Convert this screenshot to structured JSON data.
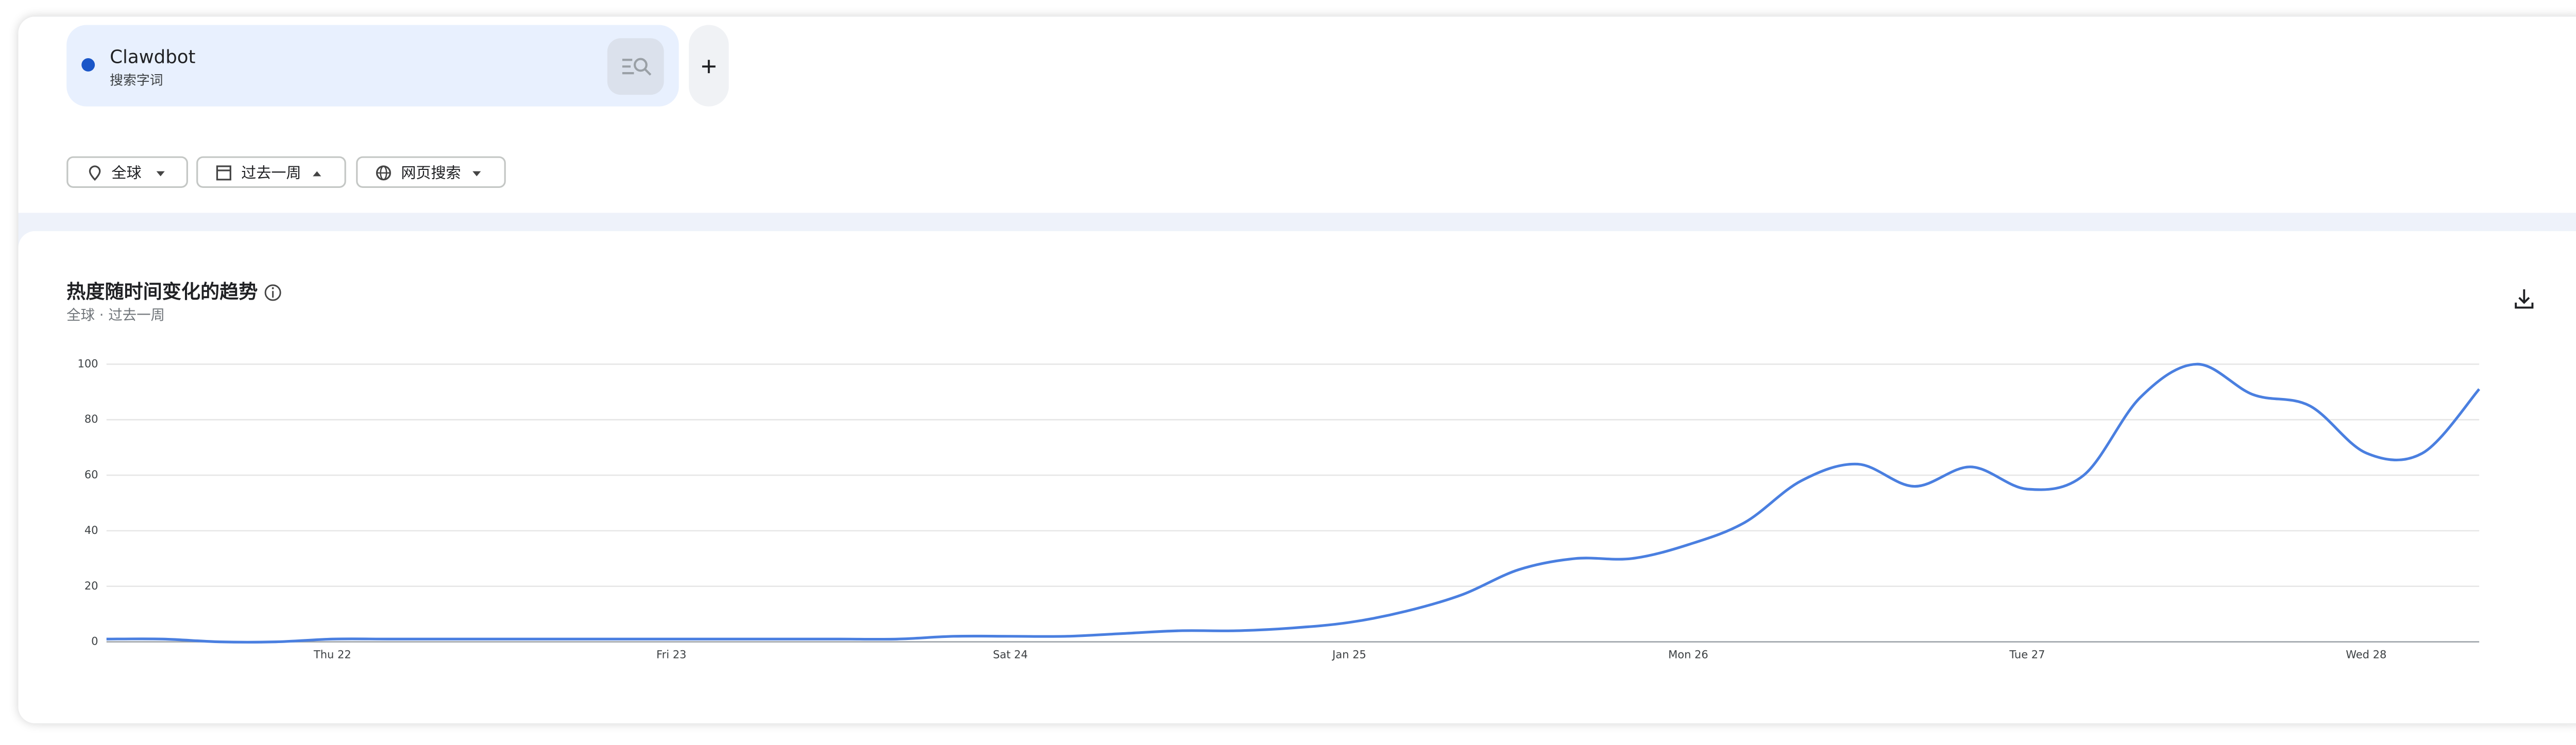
{
  "search_term": {
    "name": "Clawdbot",
    "kind": "搜索字词"
  },
  "filters": [
    "全球",
    "过去一周",
    "网页搜索"
  ],
  "chart_data": {
    "type": "line",
    "title": "热度随时间变化的趋势",
    "subtitle": "全球 · 过去一周",
    "categories": [
      null,
      null,
      null,
      null,
      "Thu 22",
      null,
      null,
      null,
      null,
      null,
      "Fri 23",
      null,
      null,
      null,
      null,
      null,
      "Sat 24",
      null,
      null,
      null,
      null,
      null,
      "Jan 25",
      null,
      null,
      null,
      null,
      null,
      "Mon 26",
      null,
      null,
      null,
      null,
      null,
      "Tue 27",
      null,
      null,
      null,
      null,
      null,
      "Wed 28",
      null,
      null
    ],
    "series": [
      {
        "name": "Clawdbot",
        "color": "#4a7fe0",
        "values": [
          1,
          1,
          0,
          0,
          1,
          1,
          1,
          1,
          1,
          1,
          1,
          1,
          1,
          1,
          1,
          2,
          2,
          2,
          3,
          4,
          4,
          5,
          7,
          11,
          17,
          26,
          30,
          30,
          35,
          43,
          58,
          64,
          56,
          63,
          55,
          60,
          88,
          100,
          89,
          85,
          68,
          68,
          91
        ]
      }
    ],
    "ylim": [
      0,
      100
    ],
    "yticks": [
      0,
      20,
      40,
      60,
      80,
      100
    ],
    "grid": true
  }
}
